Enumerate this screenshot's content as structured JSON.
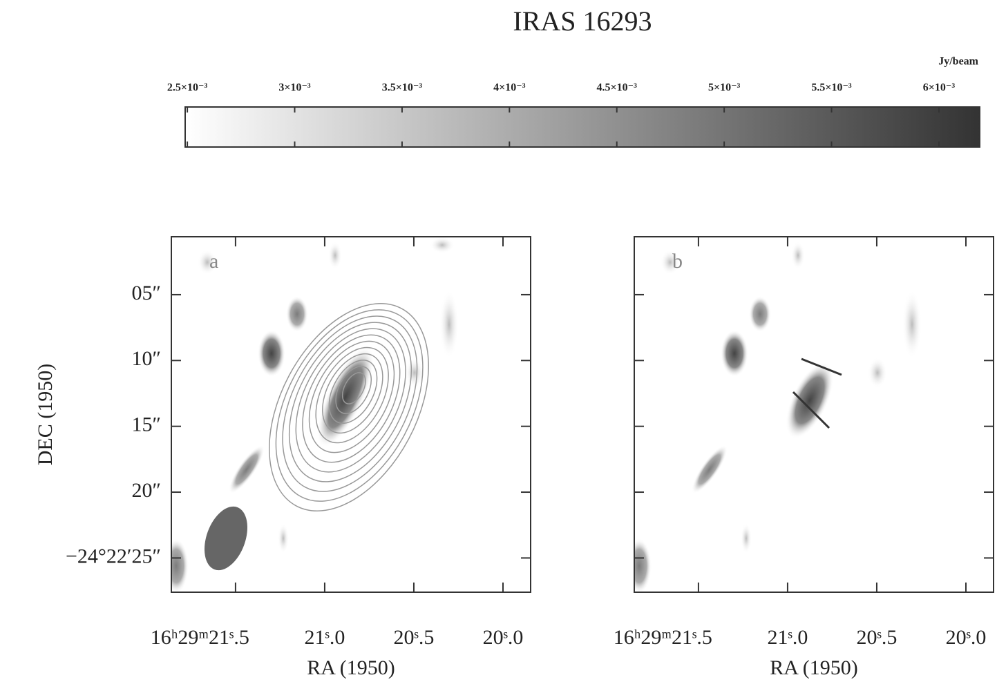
{
  "chart_data": {
    "type": "image",
    "title": "IRAS 16293",
    "colorbar": {
      "label": "Jy/beam",
      "lim": [
        0.00249,
        0.00619
      ],
      "color_low": "#ffffff",
      "color_high": "#333333",
      "ticks": [
        {
          "value": 0.0025,
          "label": "2.5×10⁻³"
        },
        {
          "value": 0.003,
          "label": "3×10⁻³"
        },
        {
          "value": 0.0035,
          "label": "3.5×10⁻³"
        },
        {
          "value": 0.004,
          "label": "4×10⁻³"
        },
        {
          "value": 0.0045,
          "label": "4.5×10⁻³"
        },
        {
          "value": 0.005,
          "label": "5×10⁻³"
        },
        {
          "value": 0.0055,
          "label": "5.5×10⁻³"
        },
        {
          "value": 0.006,
          "label": "6×10⁻³"
        }
      ]
    },
    "panels": [
      {
        "label": "a",
        "xlabel": "RA (1950)",
        "ylabel": "DEC (1950)",
        "show_ytick_labels": true,
        "xlim": [
          21.86,
          19.845
        ],
        "ylim": [
          27.6,
          0.6
        ],
        "xticks": [
          {
            "value": 21.5,
            "label": "16ʰ29ᵐ21ˢ.5"
          },
          {
            "value": 21.0,
            "label": "21ˢ.0"
          },
          {
            "value": 20.5,
            "label": "20ˢ.5"
          },
          {
            "value": 20.0,
            "label": "20ˢ.0"
          }
        ],
        "yticks": [
          {
            "value": 5,
            "label": "05″"
          },
          {
            "value": 10,
            "label": "10″"
          },
          {
            "value": 15,
            "label": "15″"
          },
          {
            "value": 20,
            "label": "20″"
          },
          {
            "value": 25,
            "label": "−24°22′25″"
          }
        ]
      },
      {
        "label": "b",
        "xlabel": "RA (1950)",
        "show_ytick_labels": false,
        "xlim": [
          21.86,
          19.845
        ],
        "ylim": [
          27.6,
          0.6
        ],
        "xticks": [
          {
            "value": 21.5,
            "label": "16ʰ29ᵐ21ˢ.5"
          },
          {
            "value": 21.0,
            "label": "21ˢ.0"
          },
          {
            "value": 20.5,
            "label": "20ˢ.5"
          },
          {
            "value": 20.0,
            "label": "20ˢ.0"
          }
        ],
        "yticks": [
          5,
          10,
          15,
          20,
          25
        ]
      }
    ]
  }
}
